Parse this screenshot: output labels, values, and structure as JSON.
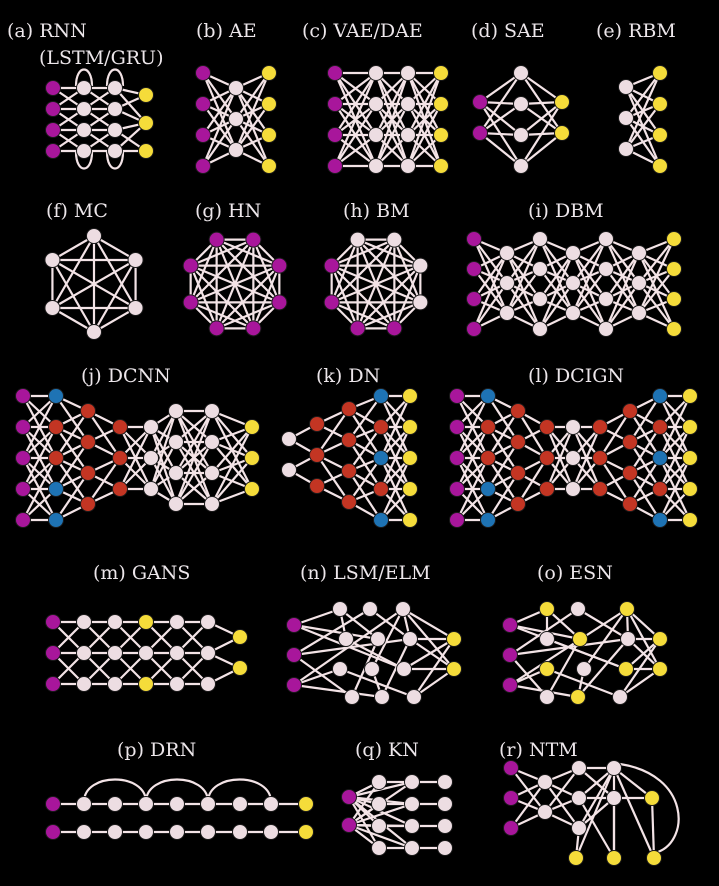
{
  "colors": {
    "background": "#000000",
    "edge": "#f3e3e6",
    "text": "#ece6ea",
    "input": "#a8169b",
    "hidden": "#eddde2",
    "output": "#f5dc3a",
    "conv": "#c33523",
    "kernel": "#1e73b4"
  },
  "networks": [
    {
      "id": "a",
      "label": "(a) RNN",
      "sublabel": "(LSTM/GRU)"
    },
    {
      "id": "b",
      "label": "(b) AE"
    },
    {
      "id": "c",
      "label": "(c) VAE/DAE"
    },
    {
      "id": "d",
      "label": "(d) SAE"
    },
    {
      "id": "e",
      "label": "(e) RBM"
    },
    {
      "id": "f",
      "label": "(f) MC"
    },
    {
      "id": "g",
      "label": "(g) HN"
    },
    {
      "id": "h",
      "label": "(h) BM"
    },
    {
      "id": "i",
      "label": "(i) DBM"
    },
    {
      "id": "j",
      "label": "(j) DCNN"
    },
    {
      "id": "k",
      "label": "(k) DN"
    },
    {
      "id": "l",
      "label": "(l) DCIGN"
    },
    {
      "id": "m",
      "label": "(m) GANS"
    },
    {
      "id": "n",
      "label": "(n) LSM/ELM"
    },
    {
      "id": "o",
      "label": "(o) ESN"
    },
    {
      "id": "p",
      "label": "(p) DRN"
    },
    {
      "id": "q",
      "label": "(q) KN"
    },
    {
      "id": "r",
      "label": "(r) NTM"
    }
  ]
}
